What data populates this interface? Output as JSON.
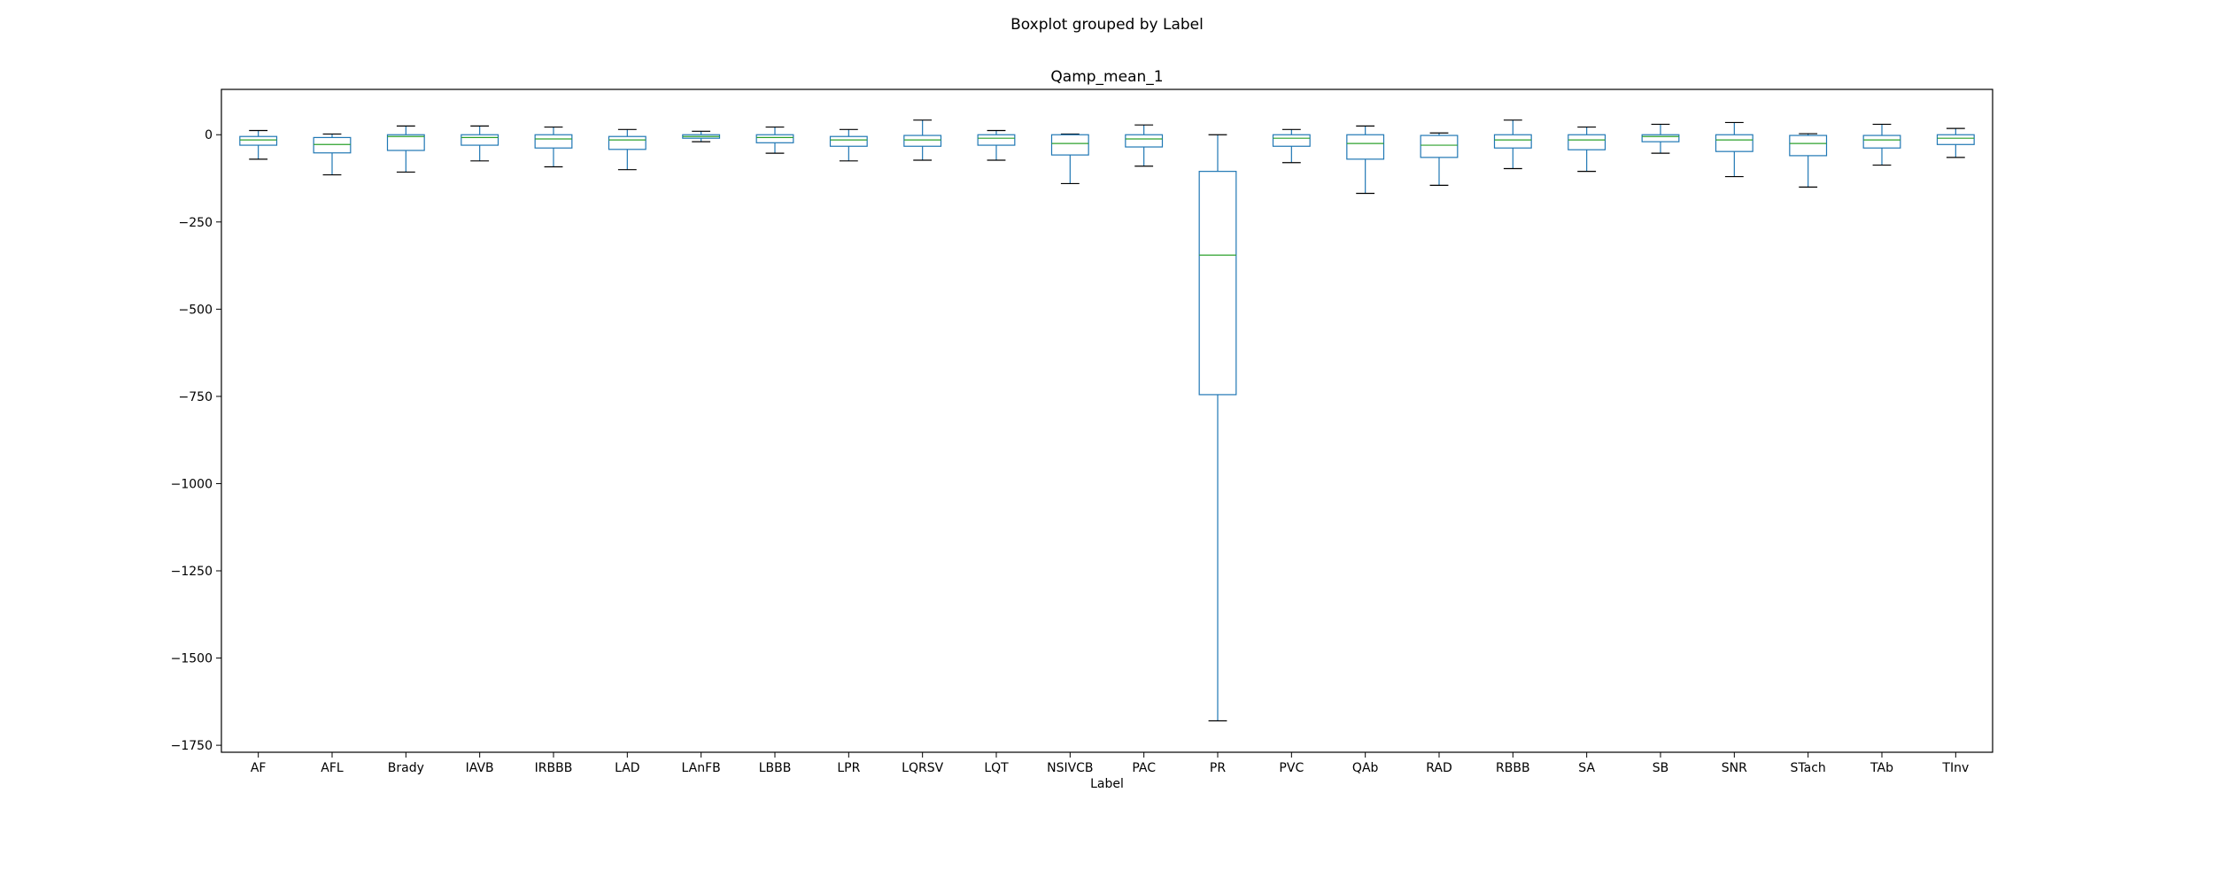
{
  "figure": {
    "suptitle": "Boxplot grouped by Label"
  },
  "chart_data": {
    "type": "boxplot",
    "title": "Qamp_mean_1",
    "xlabel": "Label",
    "ylabel": "",
    "ylim": [
      -1770,
      130
    ],
    "yticks": [
      0,
      -250,
      -500,
      -750,
      -1000,
      -1250,
      -1500,
      -1750
    ],
    "ytick_labels": [
      "0",
      "−250",
      "−500",
      "−750",
      "−1000",
      "−1250",
      "−1500",
      "−1750"
    ],
    "grid": false,
    "colors": {
      "box": "#1f77b4",
      "median": "#2ca02c",
      "whisker": "#1f77b4",
      "cap": "#000000"
    },
    "categories": [
      "AF",
      "AFL",
      "Brady",
      "IAVB",
      "IRBBB",
      "LAD",
      "LAnFB",
      "LBBB",
      "LPR",
      "LQRSV",
      "LQT",
      "NSIVCB",
      "PAC",
      "PR",
      "PVC",
      "QAb",
      "RAD",
      "RBBB",
      "SA",
      "SB",
      "SNR",
      "STach",
      "TAb",
      "TInv"
    ],
    "boxes": [
      {
        "whislo": -70,
        "q1": -30,
        "med": -15,
        "q3": -5,
        "whishi": 12
      },
      {
        "whislo": -115,
        "q1": -52,
        "med": -28,
        "q3": -8,
        "whishi": 2
      },
      {
        "whislo": -107,
        "q1": -45,
        "med": -5,
        "q3": 0,
        "whishi": 25
      },
      {
        "whislo": -75,
        "q1": -30,
        "med": -8,
        "q3": 0,
        "whishi": 25
      },
      {
        "whislo": -92,
        "q1": -38,
        "med": -12,
        "q3": 0,
        "whishi": 22
      },
      {
        "whislo": -100,
        "q1": -42,
        "med": -15,
        "q3": -5,
        "whishi": 15
      },
      {
        "whislo": -20,
        "q1": -10,
        "med": -5,
        "q3": 0,
        "whishi": 10
      },
      {
        "whislo": -53,
        "q1": -23,
        "med": -8,
        "q3": 0,
        "whishi": 22
      },
      {
        "whislo": -75,
        "q1": -33,
        "med": -15,
        "q3": -5,
        "whishi": 15
      },
      {
        "whislo": -73,
        "q1": -33,
        "med": -15,
        "q3": -2,
        "whishi": 42
      },
      {
        "whislo": -73,
        "q1": -30,
        "med": -10,
        "q3": 0,
        "whishi": 12
      },
      {
        "whislo": -140,
        "q1": -58,
        "med": -25,
        "q3": 0,
        "whishi": 2
      },
      {
        "whislo": -90,
        "q1": -35,
        "med": -12,
        "q3": 0,
        "whishi": 28
      },
      {
        "whislo": -1680,
        "q1": -745,
        "med": -345,
        "q3": -105,
        "whishi": 0
      },
      {
        "whislo": -80,
        "q1": -33,
        "med": -10,
        "q3": 0,
        "whishi": 15
      },
      {
        "whislo": -168,
        "q1": -70,
        "med": -25,
        "q3": 0,
        "whishi": 25
      },
      {
        "whislo": -145,
        "q1": -65,
        "med": -30,
        "q3": -2,
        "whishi": 5
      },
      {
        "whislo": -97,
        "q1": -38,
        "med": -15,
        "q3": 0,
        "whishi": 42
      },
      {
        "whislo": -105,
        "q1": -43,
        "med": -15,
        "q3": 0,
        "whishi": 22
      },
      {
        "whislo": -53,
        "q1": -20,
        "med": -5,
        "q3": 0,
        "whishi": 30
      },
      {
        "whislo": -120,
        "q1": -48,
        "med": -15,
        "q3": 0,
        "whishi": 35
      },
      {
        "whislo": -150,
        "q1": -60,
        "med": -25,
        "q3": -2,
        "whishi": 3
      },
      {
        "whislo": -87,
        "q1": -38,
        "med": -15,
        "q3": -2,
        "whishi": 30
      },
      {
        "whislo": -65,
        "q1": -28,
        "med": -10,
        "q3": 0,
        "whishi": 18
      }
    ]
  }
}
